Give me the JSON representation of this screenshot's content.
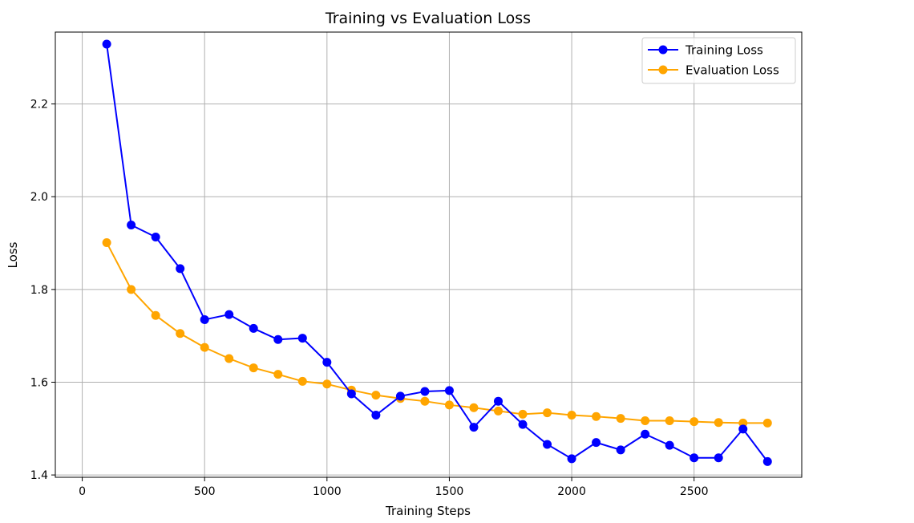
{
  "chart_data": {
    "type": "line",
    "title": "Training vs Evaluation Loss",
    "xlabel": "Training Steps",
    "ylabel": "Loss",
    "xlim": [
      -110,
      2940
    ],
    "ylim": [
      1.395,
      2.355
    ],
    "xticks": [
      0,
      500,
      1000,
      1500,
      2000,
      2500
    ],
    "yticks": [
      1.4,
      1.6,
      1.8,
      2.0,
      2.2
    ],
    "xtick_labels": [
      "0",
      "500",
      "1000",
      "1500",
      "2000",
      "2500"
    ],
    "ytick_labels": [
      "1.4",
      "1.6",
      "1.8",
      "2.0",
      "2.2"
    ],
    "grid": true,
    "legend_position": "top-right",
    "x": [
      100,
      200,
      300,
      400,
      500,
      600,
      700,
      800,
      900,
      1000,
      1100,
      1200,
      1300,
      1400,
      1500,
      1600,
      1700,
      1800,
      1900,
      2000,
      2100,
      2200,
      2300,
      2400,
      2500,
      2600,
      2700,
      2800
    ],
    "series": [
      {
        "name": "Training Loss",
        "color": "#0000ff",
        "values": [
          2.329,
          1.939,
          1.913,
          1.845,
          1.735,
          1.746,
          1.716,
          1.692,
          1.695,
          1.643,
          1.575,
          1.529,
          1.57,
          1.58,
          1.582,
          1.503,
          1.559,
          1.509,
          1.466,
          1.435,
          1.47,
          1.454,
          1.488,
          1.464,
          1.437,
          1.437,
          1.499,
          1.429
        ]
      },
      {
        "name": "Evaluation Loss",
        "color": "#ffa500",
        "values": [
          1.901,
          1.8,
          1.744,
          1.705,
          1.675,
          1.651,
          1.631,
          1.617,
          1.602,
          1.596,
          1.583,
          1.572,
          1.565,
          1.559,
          1.551,
          1.545,
          1.538,
          1.531,
          1.534,
          1.529,
          1.526,
          1.522,
          1.517,
          1.517,
          1.515,
          1.513,
          1.512,
          1.512
        ]
      }
    ]
  }
}
